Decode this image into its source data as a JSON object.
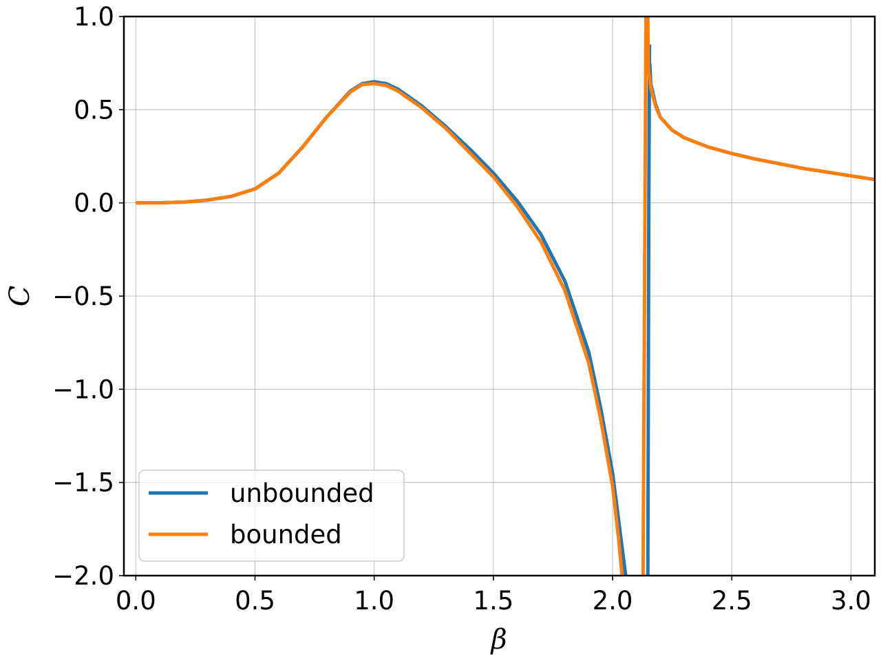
{
  "chart_data": {
    "type": "line",
    "title": "",
    "xlabel": "β",
    "ylabel": "C",
    "xlim": [
      -0.05,
      3.1
    ],
    "ylim": [
      -2.0,
      1.0
    ],
    "x_ticks": [
      0.0,
      0.5,
      1.0,
      1.5,
      2.0,
      2.5,
      3.0
    ],
    "x_tick_labels": [
      "0.0",
      "0.5",
      "1.0",
      "1.5",
      "2.0",
      "2.5",
      "3.0"
    ],
    "y_ticks": [
      1.0,
      0.5,
      0.0,
      -0.5,
      -1.0,
      -1.5,
      -2.0
    ],
    "y_tick_labels": [
      "1.0",
      "0.5",
      "0.0",
      "−0.5",
      "−1.0",
      "−1.5",
      "−2.0"
    ],
    "grid": true,
    "legend_position": "lower-left",
    "series": [
      {
        "name": "unbounded",
        "color": "#1f77b4",
        "segments": [
          [
            [
              0.0,
              0.0
            ],
            [
              0.1,
              0.0005
            ],
            [
              0.2,
              0.004
            ],
            [
              0.3,
              0.015
            ],
            [
              0.4,
              0.035
            ],
            [
              0.5,
              0.075
            ],
            [
              0.6,
              0.16
            ],
            [
              0.7,
              0.3
            ],
            [
              0.8,
              0.46
            ],
            [
              0.9,
              0.6
            ],
            [
              0.95,
              0.64
            ],
            [
              1.0,
              0.65
            ],
            [
              1.05,
              0.64
            ],
            [
              1.1,
              0.61
            ],
            [
              1.2,
              0.52
            ],
            [
              1.3,
              0.41
            ],
            [
              1.4,
              0.29
            ],
            [
              1.5,
              0.16
            ],
            [
              1.6,
              0.01
            ],
            [
              1.7,
              -0.17
            ],
            [
              1.8,
              -0.42
            ],
            [
              1.9,
              -0.8
            ],
            [
              1.95,
              -1.1
            ],
            [
              2.0,
              -1.45
            ],
            [
              2.03,
              -1.75
            ],
            [
              2.055,
              -2.0
            ]
          ],
          [
            [
              2.148,
              -2.0
            ],
            [
              2.152,
              0.0
            ],
            [
              2.155,
              0.85
            ]
          ],
          [
            [
              2.156,
              0.75
            ],
            [
              2.16,
              0.64
            ],
            [
              2.18,
              0.53
            ],
            [
              2.2,
              0.46
            ],
            [
              2.25,
              0.39
            ],
            [
              2.3,
              0.35
            ],
            [
              2.4,
              0.3
            ],
            [
              2.5,
              0.265
            ],
            [
              2.6,
              0.235
            ],
            [
              2.7,
              0.21
            ],
            [
              2.8,
              0.185
            ],
            [
              2.9,
              0.165
            ],
            [
              3.0,
              0.145
            ],
            [
              3.1,
              0.125
            ]
          ]
        ]
      },
      {
        "name": "bounded",
        "color": "#ff7f0e",
        "segments": [
          [
            [
              0.0,
              0.0
            ],
            [
              0.1,
              0.0005
            ],
            [
              0.2,
              0.004
            ],
            [
              0.3,
              0.015
            ],
            [
              0.4,
              0.035
            ],
            [
              0.5,
              0.075
            ],
            [
              0.6,
              0.16
            ],
            [
              0.7,
              0.3
            ],
            [
              0.8,
              0.46
            ],
            [
              0.9,
              0.595
            ],
            [
              0.95,
              0.635
            ],
            [
              1.0,
              0.64
            ],
            [
              1.05,
              0.63
            ],
            [
              1.1,
              0.6
            ],
            [
              1.2,
              0.51
            ],
            [
              1.3,
              0.4
            ],
            [
              1.4,
              0.27
            ],
            [
              1.5,
              0.14
            ],
            [
              1.6,
              -0.02
            ],
            [
              1.7,
              -0.21
            ],
            [
              1.8,
              -0.47
            ],
            [
              1.9,
              -0.86
            ],
            [
              1.95,
              -1.16
            ],
            [
              2.0,
              -1.52
            ],
            [
              2.025,
              -1.8
            ],
            [
              2.04,
              -2.0
            ]
          ],
          [
            [
              2.128,
              -2.0
            ],
            [
              2.134,
              -0.5
            ],
            [
              2.138,
              0.5
            ],
            [
              2.14,
              1.0
            ]
          ],
          [
            [
              2.148,
              1.0
            ],
            [
              2.15,
              0.72
            ],
            [
              2.16,
              0.62
            ],
            [
              2.18,
              0.52
            ],
            [
              2.2,
              0.46
            ],
            [
              2.25,
              0.39
            ],
            [
              2.3,
              0.35
            ],
            [
              2.4,
              0.3
            ],
            [
              2.5,
              0.265
            ],
            [
              2.6,
              0.235
            ],
            [
              2.7,
              0.21
            ],
            [
              2.8,
              0.185
            ],
            [
              2.9,
              0.165
            ],
            [
              3.0,
              0.145
            ],
            [
              3.1,
              0.125
            ]
          ]
        ]
      }
    ]
  }
}
